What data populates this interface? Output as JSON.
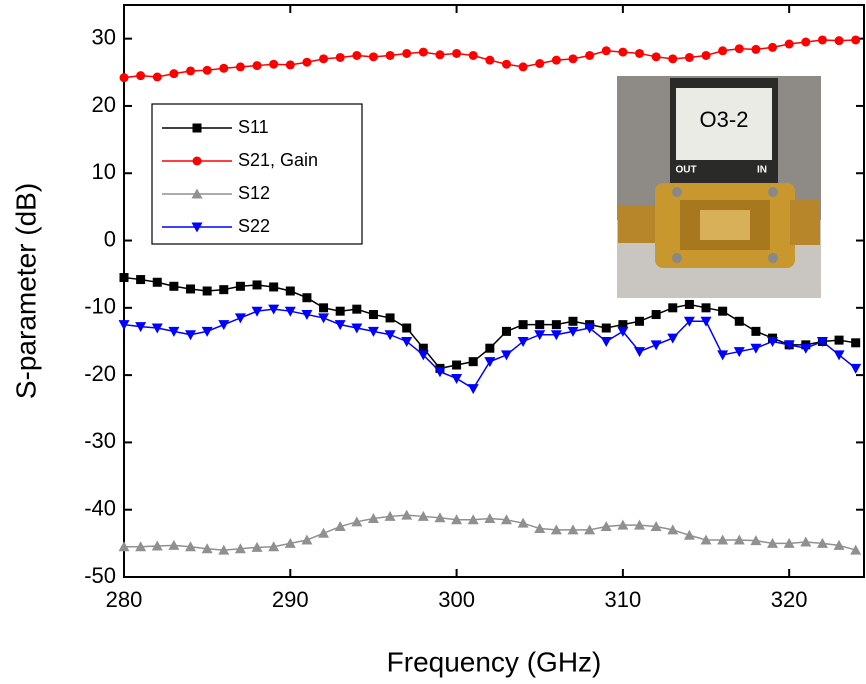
{
  "chart_data": {
    "type": "line",
    "x_label": "Frequency (GHz)",
    "y_label": "S-parameter (dB)",
    "x": [
      280,
      281,
      282,
      283,
      284,
      285,
      286,
      287,
      288,
      289,
      290,
      291,
      292,
      293,
      294,
      295,
      296,
      297,
      298,
      299,
      300,
      301,
      302,
      303,
      304,
      305,
      306,
      307,
      308,
      309,
      310,
      311,
      312,
      313,
      314,
      315,
      316,
      317,
      318,
      319,
      320,
      321,
      322,
      323,
      324
    ],
    "series": [
      {
        "name": "S11",
        "color": "#000000",
        "marker": "square",
        "values": [
          -5.5,
          -5.8,
          -6.2,
          -6.8,
          -7.2,
          -7.5,
          -7.3,
          -6.8,
          -6.6,
          -6.9,
          -7.5,
          -8.5,
          -10,
          -10.5,
          -10.2,
          -11,
          -11.5,
          -13,
          -16,
          -19,
          -18.5,
          -18,
          -16,
          -13.5,
          -12.5,
          -12.5,
          -12.5,
          -12,
          -12.5,
          -13,
          -12.5,
          -12,
          -11,
          -10,
          -9.5,
          -10,
          -10.5,
          -12,
          -13.5,
          -14.5,
          -15.5,
          -15.5,
          -15,
          -14.8,
          -15.2
        ]
      },
      {
        "name": "S21, Gain",
        "color": "#ff0000",
        "marker": "circle",
        "values": [
          24.2,
          24.5,
          24.3,
          24.8,
          25.2,
          25.3,
          25.6,
          25.8,
          26,
          26.2,
          26.1,
          26.5,
          27,
          27.2,
          27.5,
          27.3,
          27.5,
          27.8,
          28,
          27.6,
          27.8,
          27.5,
          26.8,
          26.2,
          25.8,
          26.3,
          26.8,
          27,
          27.5,
          28.2,
          28,
          27.8,
          27.3,
          27,
          27.2,
          27.5,
          28.2,
          28.5,
          28.4,
          28.7,
          29.2,
          29.5,
          29.8,
          29.7,
          29.8
        ]
      },
      {
        "name": "S12",
        "color": "#909090",
        "marker": "triangle-up",
        "values": [
          -45.5,
          -45.5,
          -45.4,
          -45.3,
          -45.5,
          -45.8,
          -46,
          -45.8,
          -45.6,
          -45.5,
          -45,
          -44.5,
          -43.5,
          -42.5,
          -41.8,
          -41.3,
          -41,
          -40.8,
          -41,
          -41.2,
          -41.5,
          -41.5,
          -41.3,
          -41.5,
          -42,
          -42.8,
          -43,
          -43,
          -43,
          -42.5,
          -42.3,
          -42.3,
          -42.5,
          -43,
          -43.8,
          -44.5,
          -44.5,
          -44.5,
          -44.6,
          -45,
          -45,
          -44.8,
          -45,
          -45.3,
          -46
        ]
      },
      {
        "name": "S22",
        "color": "#0000ff",
        "marker": "triangle-down",
        "values": [
          -12.5,
          -12.8,
          -13,
          -13.5,
          -14,
          -13.5,
          -12.5,
          -11.5,
          -10.5,
          -10.2,
          -10.5,
          -11,
          -11.5,
          -12.5,
          -13,
          -13.5,
          -14,
          -15,
          -17,
          -19.5,
          -20.5,
          -22,
          -18,
          -17,
          -15,
          -14,
          -14,
          -13.5,
          -13,
          -15,
          -13.5,
          -16.5,
          -15.5,
          -14.5,
          -12,
          -12,
          -17,
          -16.5,
          -16,
          -15,
          -15.5,
          -16,
          -15,
          -17,
          -19
        ]
      }
    ],
    "xlim": [
      280,
      324.5
    ],
    "xticks": [
      280,
      290,
      300,
      310,
      320
    ],
    "ylim": [
      -50,
      35
    ],
    "yticks": [
      -50,
      -40,
      -30,
      -20,
      -10,
      0,
      10,
      20,
      30
    ],
    "legend": "upper left",
    "inset": {
      "label": "O3-2",
      "out": "OUT",
      "in": "IN"
    }
  }
}
